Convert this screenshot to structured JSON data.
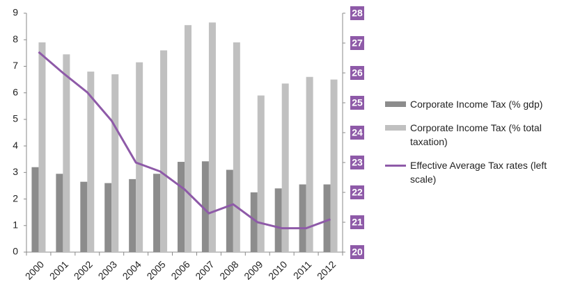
{
  "chart_data": {
    "type": "bar",
    "categories": [
      "2000",
      "2001",
      "2002",
      "2003",
      "2004",
      "2005",
      "2006",
      "2007",
      "2008",
      "2009",
      "2010",
      "2011",
      "2012"
    ],
    "series": [
      {
        "name": "Corporate Income Tax (% gdp)",
        "type": "bar",
        "color": "#8c8c8c",
        "values": [
          3.2,
          2.95,
          2.65,
          2.6,
          2.75,
          2.95,
          3.4,
          3.42,
          3.1,
          2.25,
          2.4,
          2.55,
          2.55
        ]
      },
      {
        "name": "Corporate Income Tax (% total taxation)",
        "type": "bar",
        "color": "#c0c0c0",
        "values": [
          7.9,
          7.45,
          6.8,
          6.7,
          7.15,
          7.6,
          8.55,
          8.65,
          7.9,
          5.9,
          6.35,
          6.6,
          6.5
        ]
      },
      {
        "name": "Effective Average Tax rates (left scale)",
        "type": "line",
        "axis": "y2",
        "color": "#8e5aa8",
        "values": [
          26.7,
          26.0,
          25.35,
          24.4,
          23.0,
          22.7,
          22.1,
          21.3,
          21.6,
          21.0,
          20.8,
          20.8,
          21.1
        ]
      }
    ],
    "ylim": [
      0,
      9
    ],
    "yticks": [
      0,
      1,
      2,
      3,
      4,
      5,
      6,
      7,
      8,
      9
    ],
    "y2lim": [
      20,
      28
    ],
    "y2ticks": [
      20,
      21,
      22,
      23,
      24,
      25,
      26,
      27,
      28
    ],
    "y2tick_color": "#8e5aa8"
  }
}
